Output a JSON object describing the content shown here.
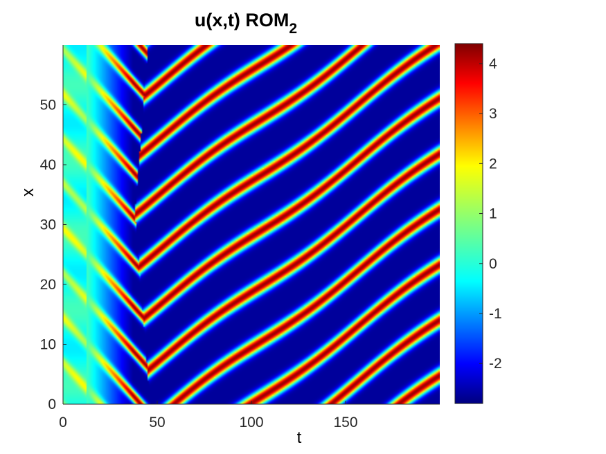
{
  "chart_data": {
    "type": "heatmap",
    "title": "u(x,t) ROM",
    "title_subscript": "2",
    "xlabel": "t",
    "ylabel": "x",
    "xlim": [
      0,
      200
    ],
    "ylim": [
      0,
      60
    ],
    "xticks": [
      0,
      50,
      100,
      150
    ],
    "yticks": [
      0,
      10,
      20,
      30,
      40,
      50
    ],
    "colorbar": {
      "colormap": "jet",
      "clim": [
        -2.8,
        4.4
      ],
      "ticks": [
        -2,
        -1,
        0,
        1,
        2,
        3,
        4
      ],
      "tick_labels": [
        "-2",
        "-1",
        "0",
        "1",
        "2",
        "3",
        "4"
      ]
    },
    "field_description": "Travelling stripe pattern: transient near t<50 with V-shaped front, then red/blue diagonal stripes drifting upward in x over t",
    "stripe_peak_value": 4.2,
    "trough_value": -2.6
  },
  "colors": {
    "axis": "#262626",
    "background": "#ffffff"
  }
}
